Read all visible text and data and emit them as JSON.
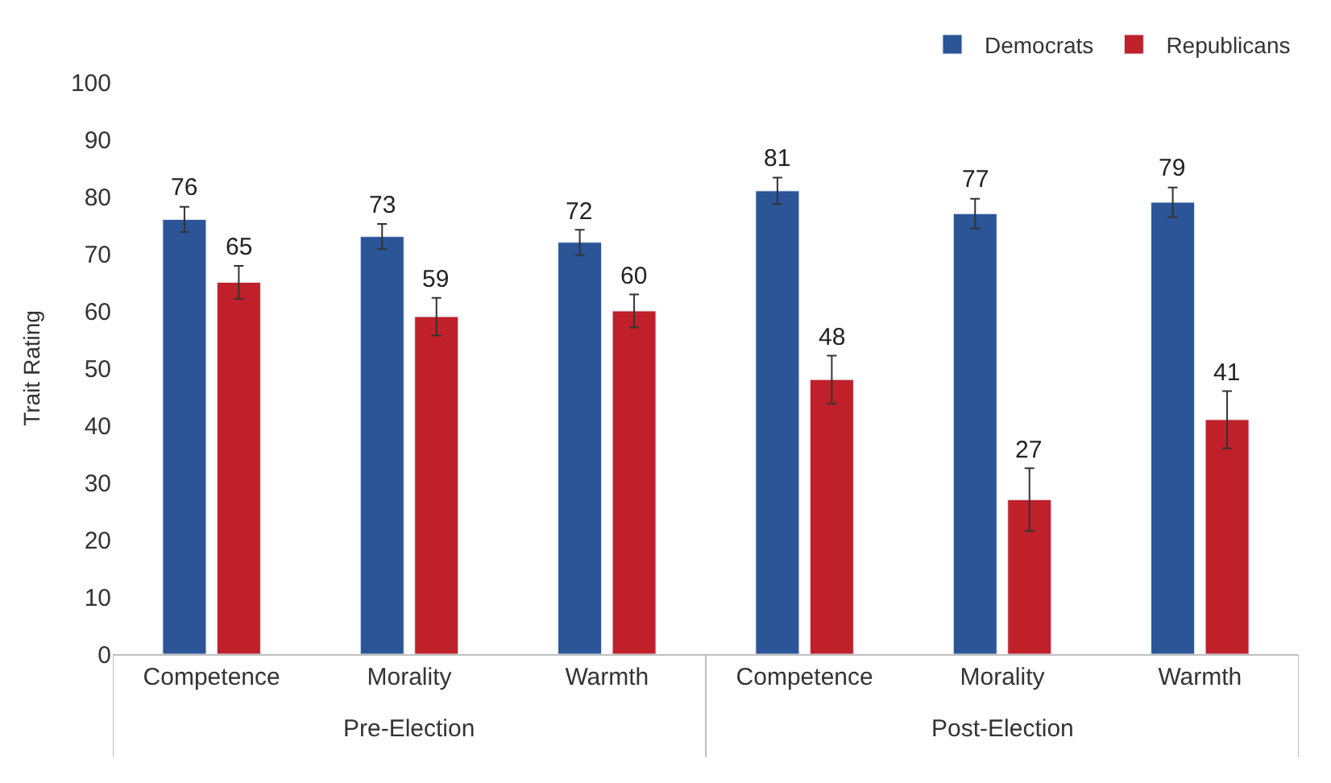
{
  "chart_data": {
    "type": "bar",
    "ylabel": "Trait Rating",
    "categories": [
      "Competence",
      "Morality",
      "Warmth",
      "Competence",
      "Morality",
      "Warmth"
    ],
    "series": [
      {
        "name": "Democrats",
        "color": "#2b5597",
        "values": [
          76,
          73,
          72,
          81,
          77,
          79
        ],
        "errors": [
          2.2,
          2.2,
          2.2,
          2.3,
          2.6,
          2.6
        ]
      },
      {
        "name": "Republicans",
        "color": "#c0202a",
        "values": [
          65,
          59,
          60,
          48,
          27,
          41
        ],
        "errors": [
          2.9,
          3.3,
          2.9,
          4.2,
          5.5,
          5
        ]
      }
    ],
    "annotations": [
      "Pre-Election",
      "Post-Election"
    ],
    "ylim": [
      0,
      100
    ],
    "yticks": [
      0,
      10,
      20,
      30,
      40,
      50,
      60,
      70,
      80,
      90,
      100
    ],
    "data_labels": true,
    "legend": "top right"
  }
}
